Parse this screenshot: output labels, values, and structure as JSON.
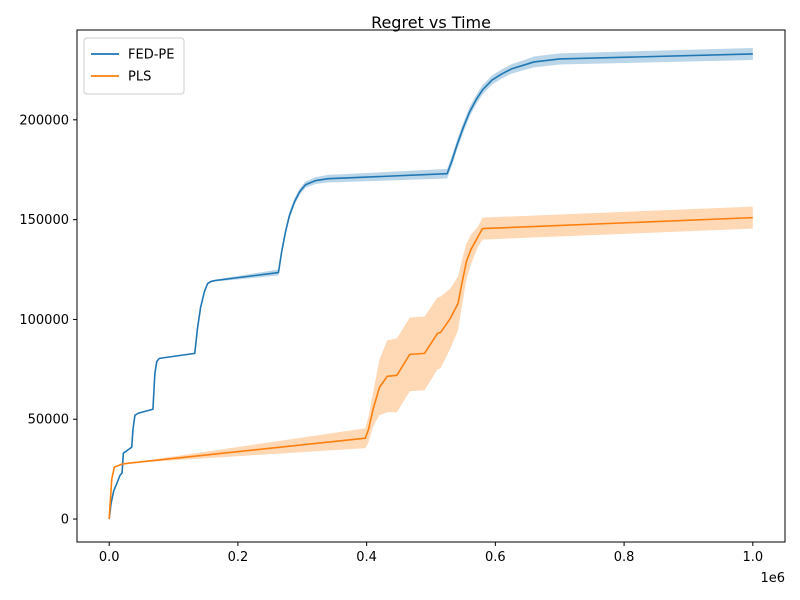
{
  "chart_data": {
    "type": "line",
    "title": "Regret vs Time",
    "xlabel": "",
    "ylabel": "",
    "x_offset_label": "1e6",
    "xlim": [
      -50000,
      1050000
    ],
    "ylim": [
      -11500,
      245000
    ],
    "x_ticks": [
      0,
      200000,
      400000,
      600000,
      800000,
      1000000
    ],
    "x_tick_labels": [
      "0.0",
      "0.2",
      "0.4",
      "0.6",
      "0.8",
      "1.0"
    ],
    "y_ticks": [
      0,
      50000,
      100000,
      150000,
      200000
    ],
    "y_tick_labels": [
      "0",
      "50000",
      "100000",
      "150000",
      "200000"
    ],
    "legend_position": "upper-left",
    "grid": false,
    "series": [
      {
        "name": "FED-PE",
        "color": "#1f77b4",
        "x": [
          0,
          3000,
          7000,
          12000,
          17000,
          20000,
          22000,
          35000,
          37000,
          40000,
          45000,
          68000,
          71000,
          74000,
          78000,
          133000,
          137000,
          142000,
          148000,
          153000,
          158000,
          165000,
          263000,
          268000,
          274000,
          280000,
          288000,
          296000,
          305000,
          320000,
          340000,
          525000,
          532000,
          540000,
          550000,
          560000,
          570000,
          580000,
          595000,
          610000,
          625000,
          645000,
          660000,
          700000,
          1000000
        ],
        "y": [
          0,
          8000,
          14000,
          18000,
          22000,
          23000,
          33000,
          36000,
          45000,
          52000,
          53000,
          55000,
          73000,
          79000,
          80500,
          83000,
          95000,
          106000,
          114000,
          118000,
          119000,
          119500,
          123500,
          134000,
          144000,
          152000,
          159000,
          164000,
          167500,
          169500,
          170500,
          173000,
          179000,
          187000,
          196000,
          204000,
          210000,
          215000,
          220000,
          223000,
          225500,
          227500,
          229000,
          230500,
          233000
        ],
        "spread": [
          0,
          0,
          0,
          0,
          0,
          0,
          0,
          0,
          0,
          0,
          0,
          0,
          0,
          0,
          0,
          400,
          600,
          700,
          700,
          600,
          500,
          500,
          1500,
          1800,
          1800,
          1800,
          1700,
          1600,
          1600,
          1700,
          1900,
          2400,
          2500,
          2500,
          2500,
          2400,
          2400,
          2300,
          2300,
          2300,
          2400,
          2500,
          2700,
          2800,
          3000
        ]
      },
      {
        "name": "PLS",
        "color": "#ff7f0e",
        "x": [
          0,
          4000,
          8000,
          12000,
          20000,
          30000,
          398000,
          403000,
          410000,
          420000,
          432000,
          447000,
          467000,
          490000,
          510000,
          515000,
          530000,
          542000,
          548000,
          555000,
          562000,
          573000,
          580000,
          1000000
        ],
        "y": [
          0,
          20000,
          26000,
          26500,
          27500,
          28000,
          40500,
          45000,
          55000,
          66000,
          71500,
          72000,
          82500,
          83000,
          93000,
          93500,
          100500,
          108000,
          118000,
          129000,
          135000,
          141500,
          145500,
          151000
        ],
        "spread": [
          0,
          0,
          0,
          0,
          0,
          0,
          5000,
          6500,
          8500,
          14000,
          18000,
          18500,
          18500,
          18500,
          18000,
          18000,
          15000,
          13500,
          11500,
          9000,
          7500,
          5000,
          5500,
          5500
        ]
      }
    ]
  }
}
